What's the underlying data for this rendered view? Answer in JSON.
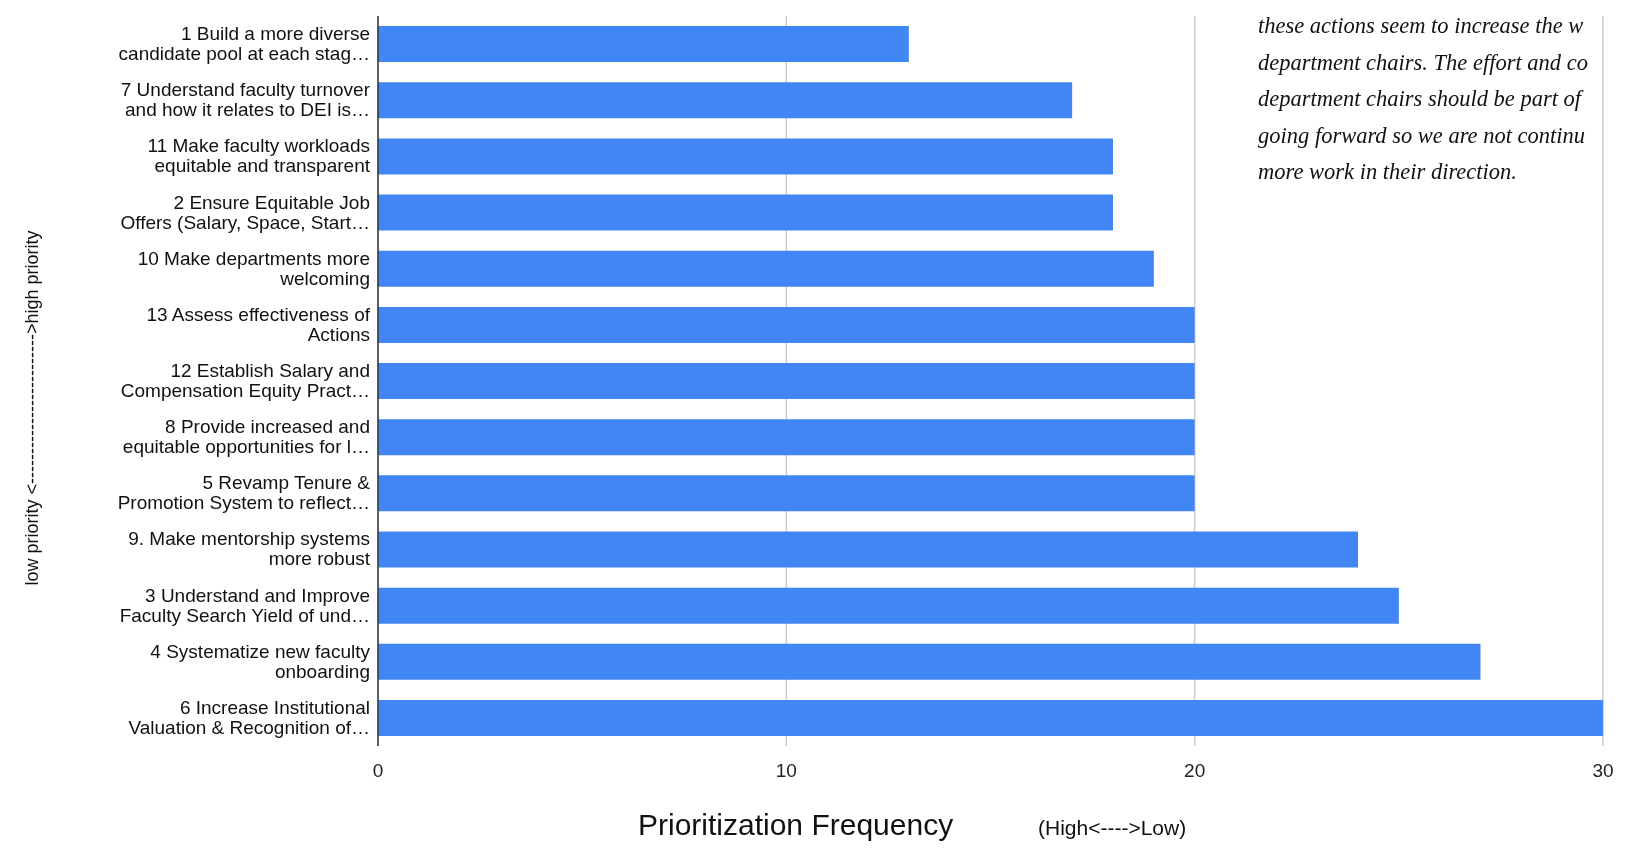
{
  "chart_data": {
    "type": "bar",
    "orientation": "horizontal",
    "xlabel": "Prioritization Frequency",
    "ylabel": "low priority <------------------------->high priority",
    "categories": [
      "1 Build a more diverse candidate pool at each stag…",
      "7 Understand faculty turnover and how it relates to DEI is…",
      "11 Make faculty workloads equitable and transparent",
      "2 Ensure Equitable Job Offers (Salary, Space, Start…",
      "10 Make departments more welcoming",
      "13 Assess effectiveness of Actions",
      "12 Establish Salary and Compensation Equity Pract…",
      "8 Provide increased and equitable opportunities for l…",
      "5 Revamp Tenure & Promotion System to reflect…",
      "9. Make mentorship systems more robust",
      "3 Understand and Improve Faculty Search Yield of und…",
      "4 Systematize new faculty onboarding",
      "6 Increase Institutional Valuation & Recognition of…"
    ],
    "values": [
      13,
      17,
      18,
      18,
      19,
      20,
      20,
      20,
      20,
      24,
      25,
      27,
      30
    ],
    "color": "#4285f4",
    "xlim": [
      0,
      30
    ],
    "xticks": [
      0,
      10,
      20,
      30
    ],
    "grid": "x",
    "annotations": [
      "these actions seem to increase the w",
      "department chairs. The effort and co",
      "department chairs should be part of",
      "going forward so we are not continu",
      "more work in their direction.",
      "(High<---->Low)"
    ]
  }
}
